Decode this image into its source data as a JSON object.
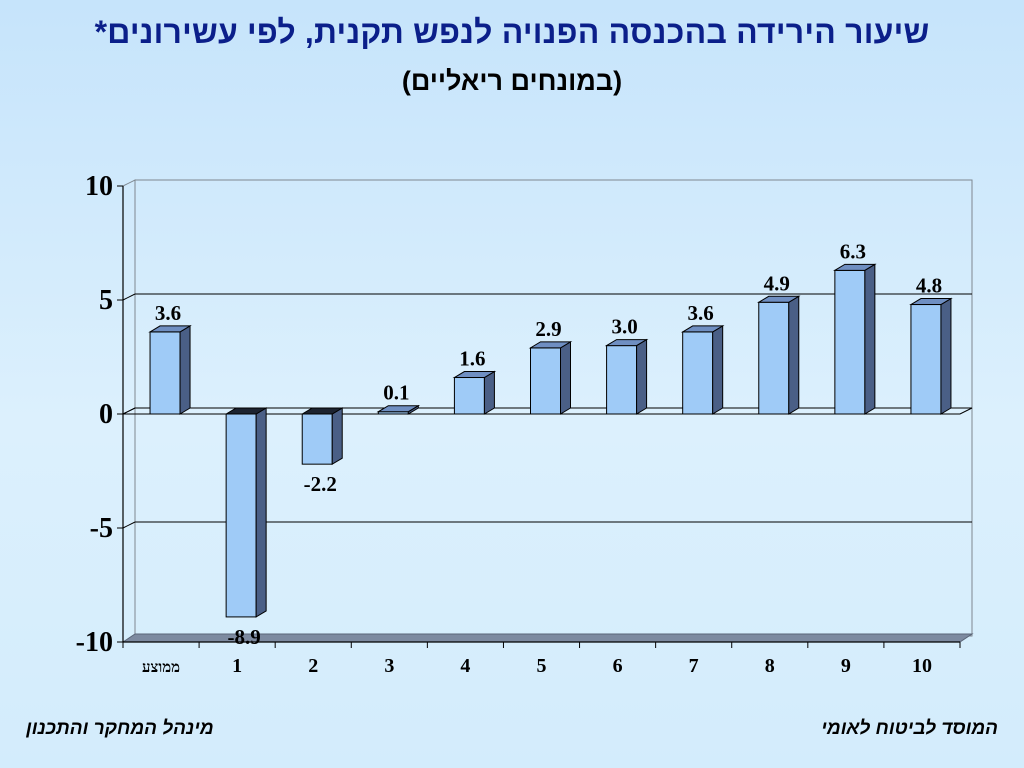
{
  "title": "שיעור הירידה בהכנסה הפנויה לנפש תקנית, לפי עשירונים*",
  "subtitle": "(במונחים ריאליים)",
  "footer": {
    "right": "המוסד לביטוח לאומי",
    "left": "מינהל המחקר והתכנון"
  },
  "colors": {
    "bar_front": "#9fcbf7",
    "bar_side": "#4a5f86",
    "bar_top": "#6f8fc2",
    "title": "#0b1f8a",
    "floor": "#7d8aa0"
  },
  "chart_data": {
    "type": "bar",
    "categories": [
      "ממוצע",
      "1",
      "2",
      "3",
      "4",
      "5",
      "6",
      "7",
      "8",
      "9",
      "10"
    ],
    "series": [
      {
        "values": [
          3.6,
          -8.9,
          -2.2,
          0.1,
          1.6,
          2.9,
          3.0,
          3.6,
          4.9,
          6.3,
          4.8
        ]
      }
    ],
    "data_labels": [
      "3.6",
      "-8.9",
      "-2.2",
      "0.1",
      "1.6",
      "2.9",
      "3.0",
      "3.6",
      "4.9",
      "6.3",
      "4.8"
    ],
    "ylim": [
      -10,
      10
    ],
    "yticks": [
      10,
      5,
      0,
      -5,
      -10
    ],
    "ytick_labels": [
      "10",
      "5",
      "0",
      "-5",
      "-10"
    ],
    "grid": true,
    "legend": "none",
    "style": "3d"
  }
}
